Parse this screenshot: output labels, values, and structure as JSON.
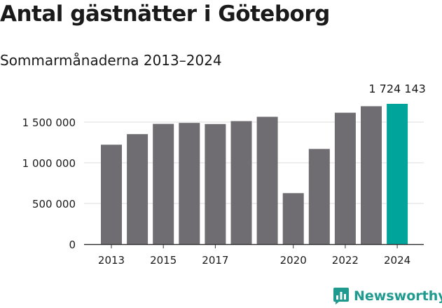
{
  "title": "Antal gästnätter i Göteborg",
  "subtitle": "Sommarmånaderna 2013–2024",
  "brand": {
    "name": "Newsworthy",
    "icon": "newsworthy-logo-icon",
    "color": "#1e9a8f"
  },
  "chart_data": {
    "type": "bar",
    "categories": [
      "2013",
      "2014",
      "2015",
      "2016",
      "2017",
      "2018",
      "2019",
      "2020",
      "2021",
      "2022",
      "2023",
      "2024"
    ],
    "values": [
      1222000,
      1352000,
      1478000,
      1490000,
      1476000,
      1512000,
      1565000,
      627000,
      1170000,
      1615000,
      1695000,
      1724143
    ],
    "x_tick_labels": [
      "2013",
      "2015",
      "2017",
      "2020",
      "2022",
      "2024"
    ],
    "y_ticks": [
      0,
      500000,
      1000000,
      1500000
    ],
    "y_tick_labels": [
      "0",
      "500 000",
      "1 000 000",
      "1 500 000"
    ],
    "ylim": [
      0,
      1724143
    ],
    "annotation": {
      "category": "2024",
      "text": "1 724 143"
    },
    "colors": {
      "bar": "#6f6d72",
      "highlight": "#00a49a",
      "highlight_category": "2024",
      "grid": "#dddddd",
      "axis": "#333333"
    },
    "grid": true,
    "xlabel": "",
    "ylabel": ""
  }
}
